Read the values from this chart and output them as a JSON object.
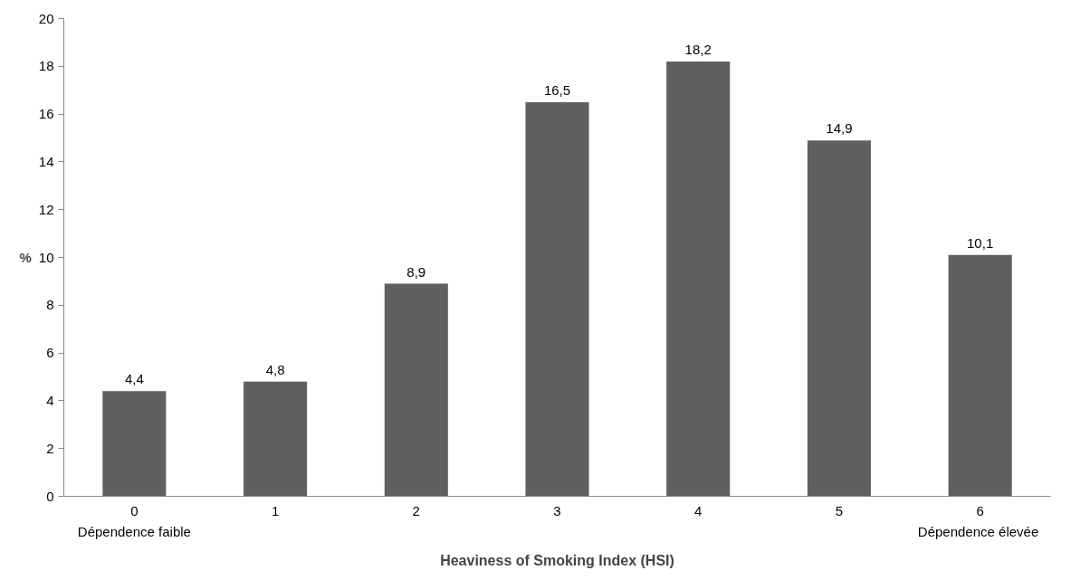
{
  "chart_data": {
    "type": "bar",
    "categories": [
      "0",
      "1",
      "2",
      "3",
      "4",
      "5",
      "6"
    ],
    "values": [
      4.4,
      4.8,
      8.9,
      16.5,
      18.2,
      14.9,
      10.1
    ],
    "value_labels": [
      "4,4",
      "4,8",
      "8,9",
      "16,5",
      "18,2",
      "14,9",
      "10,1"
    ],
    "color": "#606060",
    "ylim": [
      0,
      20
    ],
    "yticks": [
      0,
      2,
      4,
      6,
      8,
      10,
      12,
      14,
      16,
      18,
      20
    ],
    "xlabel": "Heaviness of Smoking Index (HSI)",
    "ylabel": "%",
    "grid": false,
    "annotations": [
      "Dépendence faible",
      "Dépendence  élevée"
    ]
  }
}
